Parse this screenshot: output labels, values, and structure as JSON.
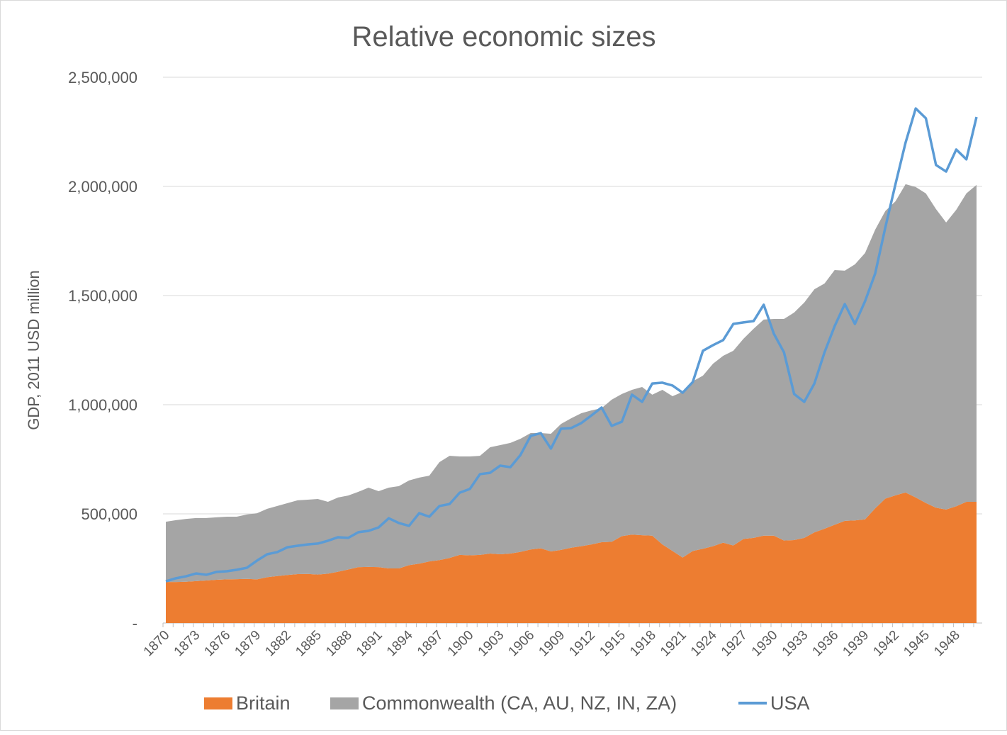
{
  "chart_data": {
    "type": "area",
    "title": "Relative economic sizes",
    "ylabel": "GDP, 2011 USD million",
    "xlabel": "",
    "ylim": [
      0,
      2500000
    ],
    "yticks": [
      0,
      500000,
      1000000,
      1500000,
      2000000,
      2500000
    ],
    "ytick_labels": [
      "-",
      "500,000",
      "1,000,000",
      "1,500,000",
      "2,000,000",
      "2,500,000"
    ],
    "xtick_labels": [
      "1870",
      "1873",
      "1876",
      "1879",
      "1882",
      "1885",
      "1888",
      "1891",
      "1894",
      "1897",
      "1900",
      "1903",
      "1906",
      "1909",
      "1912",
      "1915",
      "1918",
      "1921",
      "1924",
      "1927",
      "1930",
      "1933",
      "1936",
      "1939",
      "1942",
      "1945",
      "1948"
    ],
    "x_start": 1870,
    "x_end": 1950,
    "grid": "horizontal",
    "legend_position": "bottom",
    "stacked": true,
    "series": [
      {
        "name": "Britain",
        "kind": "area",
        "color": "#ed7d31",
        "values": [
          188000,
          188000,
          189000,
          192000,
          195000,
          198000,
          200000,
          201000,
          202000,
          200000,
          210000,
          215000,
          220000,
          224000,
          225000,
          222000,
          226000,
          235000,
          245000,
          256000,
          257000,
          256000,
          250000,
          250000,
          265000,
          272000,
          282000,
          288000,
          298000,
          312000,
          310000,
          312000,
          318000,
          315000,
          318000,
          326000,
          337000,
          342000,
          328000,
          335000,
          345000,
          352000,
          360000,
          370000,
          372000,
          398000,
          405000,
          402000,
          400000,
          360000,
          330000,
          300000,
          330000,
          340000,
          352000,
          368000,
          355000,
          385000,
          390000,
          400000,
          400000,
          378000,
          380000,
          390000,
          415000,
          432000,
          450000,
          468000,
          470000,
          475000,
          525000,
          570000,
          585000,
          598000,
          575000,
          550000,
          528000,
          520000,
          535000,
          555000,
          555000
        ]
      },
      {
        "name": "Commonwealth (CA, AU, NZ, IN, ZA)",
        "kind": "area",
        "color": "#a5a5a5",
        "values": [
          276000,
          283000,
          288000,
          289000,
          286000,
          286000,
          287000,
          286000,
          295000,
          303000,
          313000,
          321000,
          329000,
          338000,
          340000,
          346000,
          329000,
          340000,
          339000,
          345000,
          363000,
          348000,
          370000,
          377000,
          388000,
          394000,
          393000,
          449000,
          468000,
          451000,
          453000,
          454000,
          487000,
          500000,
          507000,
          518000,
          533000,
          528000,
          539000,
          577000,
          593000,
          609000,
          614000,
          614000,
          651000,
          651000,
          663000,
          679000,
          646000,
          708000,
          709000,
          759000,
          777000,
          793000,
          836000,
          856000,
          892000,
          917000,
          958000,
          990000,
          993000,
          1015000,
          1042000,
          1078000,
          1114000,
          1123000,
          1167000,
          1146000,
          1173000,
          1220000,
          1277000,
          1317000,
          1347000,
          1412000,
          1422000,
          1418000,
          1368000,
          1315000,
          1358000,
          1413000,
          1452000
        ]
      },
      {
        "name": "USA",
        "kind": "line",
        "color": "#5b9bd5",
        "values": [
          191000,
          205000,
          214000,
          227000,
          221000,
          234000,
          237000,
          244000,
          253000,
          286000,
          315000,
          325000,
          347000,
          354000,
          360000,
          364000,
          377000,
          393000,
          390000,
          416000,
          422000,
          438000,
          480000,
          458000,
          445000,
          503000,
          487000,
          536000,
          545000,
          597000,
          614000,
          682000,
          688000,
          721000,
          714000,
          770000,
          857000,
          870000,
          799000,
          890000,
          893000,
          916000,
          951000,
          987000,
          903000,
          922000,
          1046000,
          1013000,
          1097000,
          1101000,
          1088000,
          1055000,
          1104000,
          1247000,
          1273000,
          1296000,
          1370000,
          1377000,
          1383000,
          1458000,
          1325000,
          1240000,
          1049000,
          1013000,
          1097000,
          1240000,
          1360000,
          1461000,
          1370000,
          1474000,
          1601000,
          1812000,
          2010000,
          2201000,
          2357000,
          2312000,
          2098000,
          2068000,
          2169000,
          2124000,
          2318000
        ]
      }
    ]
  }
}
